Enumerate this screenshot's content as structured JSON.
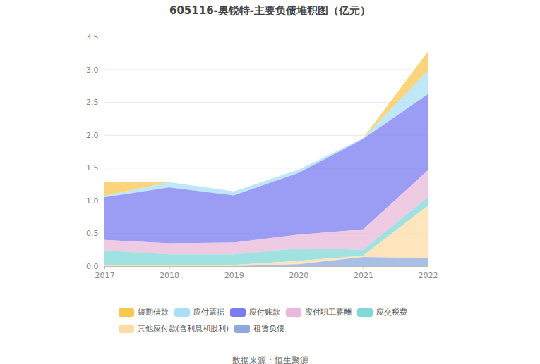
{
  "chart_data": {
    "type": "area",
    "title": "605116-奥锐特-主要负债堆积图（亿元）",
    "caption": "数据来源：恒生聚源",
    "stacked": true,
    "grid": true,
    "legend": "bottom",
    "x": [
      2017,
      2018,
      2019,
      2020,
      2021,
      2022
    ],
    "xlim": [
      2017,
      2022
    ],
    "xticks": [
      2017,
      2018,
      2019,
      2020,
      2021,
      2022
    ],
    "ylim": [
      0,
      3.5
    ],
    "yticks": [
      0,
      0.5,
      1,
      1.5,
      2,
      2.5,
      3,
      3.5
    ],
    "series": [
      {
        "name": "短期借款",
        "color": "#f9c74f",
        "values": [
          0.21,
          0,
          0,
          0,
          0,
          0.29
        ]
      },
      {
        "name": "应付票据",
        "color": "#aadff5",
        "values": [
          0.02,
          0.08,
          0.06,
          0.05,
          0.01,
          0.36
        ]
      },
      {
        "name": "应付账款",
        "color": "#7a7cf0",
        "values": [
          0.65,
          0.85,
          0.72,
          0.94,
          1.38,
          1.16
        ]
      },
      {
        "name": "应付职工薪酬",
        "color": "#eab8da",
        "values": [
          0.16,
          0.17,
          0.18,
          0.21,
          0.31,
          0.41
        ]
      },
      {
        "name": "应交税费",
        "color": "#80d8d8",
        "values": [
          0.23,
          0.17,
          0.16,
          0.19,
          0.09,
          0.13
        ]
      },
      {
        "name": "其他应付款(含利息和股利)",
        "color": "#fddca5",
        "values": [
          0.01,
          0.01,
          0.02,
          0.05,
          0.02,
          0.8
        ]
      },
      {
        "name": "租赁负债",
        "color": "#8eaadd",
        "values": [
          0,
          0,
          0,
          0.03,
          0.14,
          0.12
        ]
      }
    ]
  }
}
